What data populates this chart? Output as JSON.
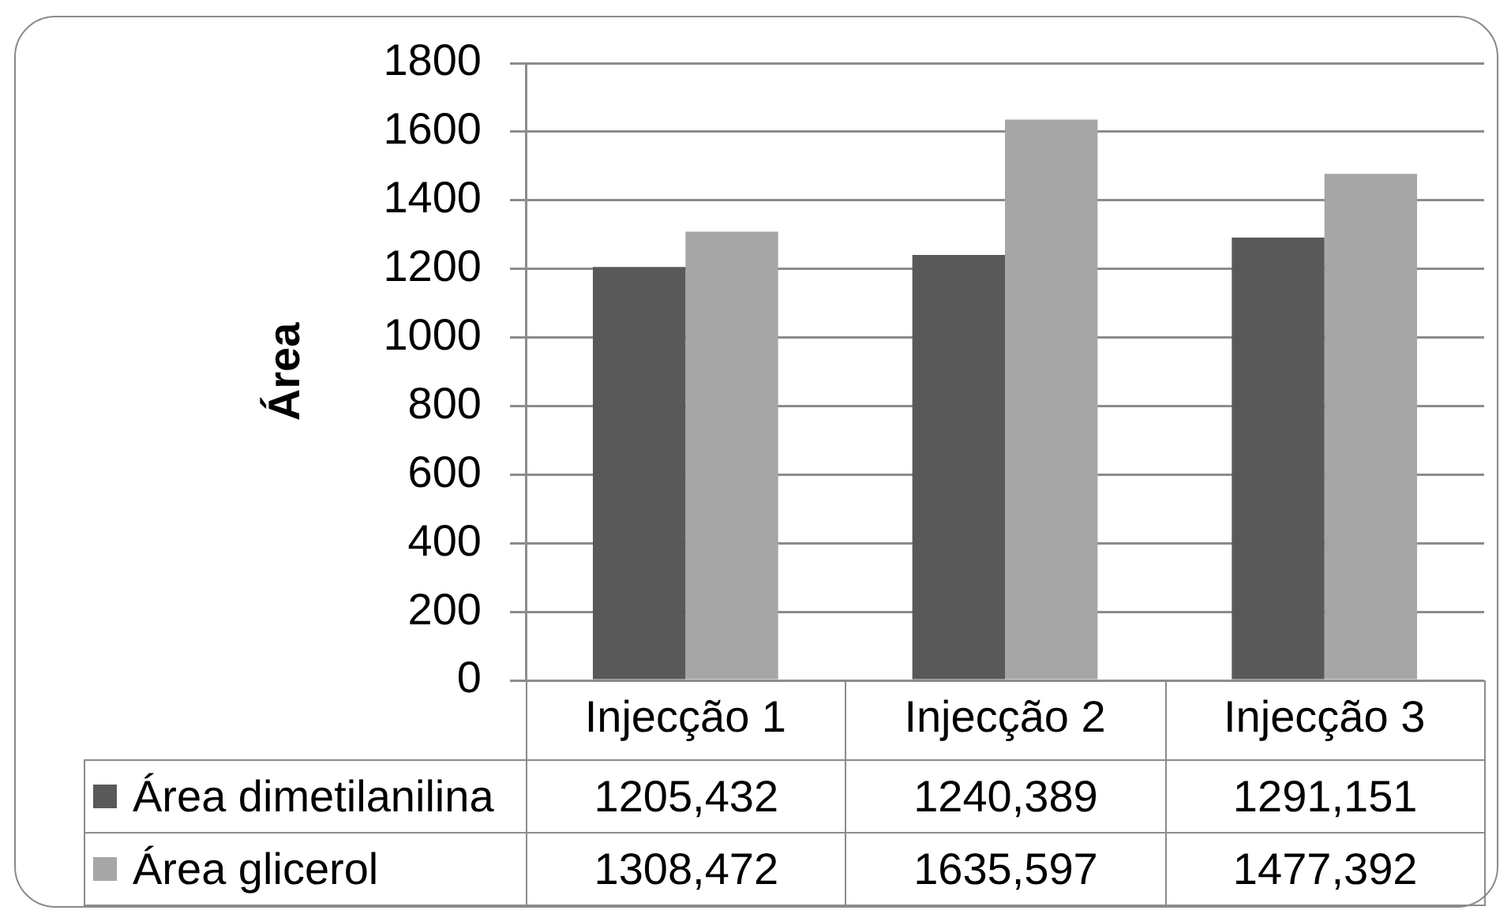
{
  "chart_data": {
    "type": "bar",
    "ylabel": "Área",
    "categories": [
      "Injecção 1",
      "Injecção 2",
      "Injecção 3"
    ],
    "series": [
      {
        "name": "Área dimetilanilina",
        "color": "#595959",
        "values": [
          1205.432,
          1240.389,
          1291.151
        ],
        "value_labels": [
          "1205,432",
          "1240,389",
          "1291,151"
        ]
      },
      {
        "name": "Área glicerol",
        "color": "#a6a6a6",
        "values": [
          1308.472,
          1635.597,
          1477.392
        ],
        "value_labels": [
          "1308,472",
          "1635,597",
          "1477,392"
        ]
      }
    ],
    "ylim": [
      0,
      1800
    ],
    "yticks": [
      0,
      200,
      400,
      600,
      800,
      1000,
      1200,
      1400,
      1600,
      1800
    ],
    "grid": "y",
    "legend": "bottom"
  }
}
